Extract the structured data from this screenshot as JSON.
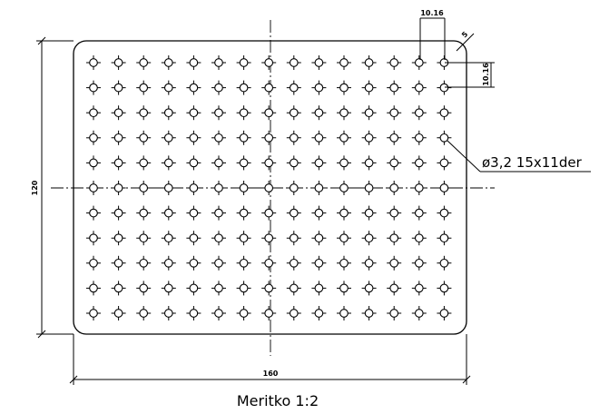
{
  "dimensions": {
    "width_label": "160",
    "height_label": "120",
    "pitch_horizontal_label": "10.16",
    "pitch_vertical_label": "10.16",
    "corner_radius_label": "5"
  },
  "callout": {
    "hole_note": "ø3,2  15x11der"
  },
  "scale_note": "Meritko 1:2",
  "grid": {
    "columns": 15,
    "rows": 11
  }
}
